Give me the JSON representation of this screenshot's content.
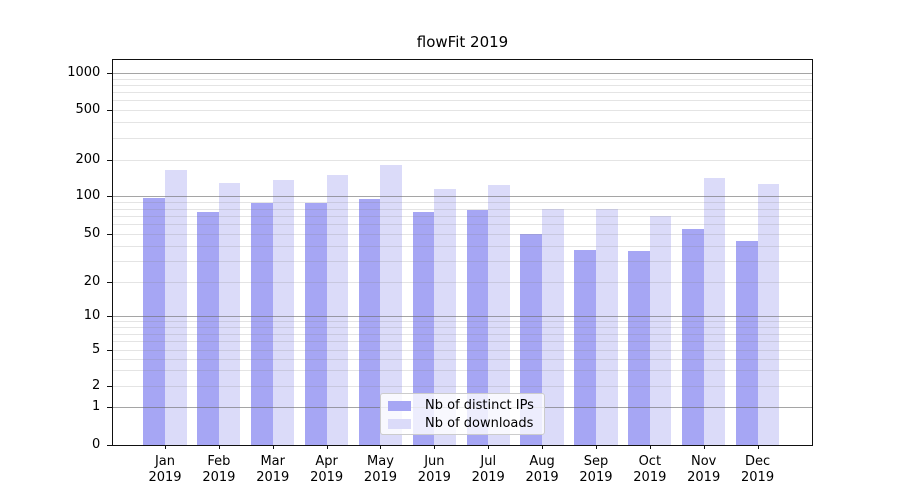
{
  "title": "flowFit 2019",
  "chart_data": {
    "type": "bar",
    "title": "flowFit 2019",
    "y_scale": "symlog",
    "grid": "on",
    "categories": [
      "Jan",
      "Feb",
      "Mar",
      "Apr",
      "May",
      "Jun",
      "Jul",
      "Aug",
      "Sep",
      "Oct",
      "Nov",
      "Dec"
    ],
    "category_year": "2019",
    "series": [
      {
        "name": "Nb of distinct IPs",
        "color": "#a6a6f4",
        "values": [
          97,
          75,
          88,
          89,
          96,
          75,
          78,
          50,
          37,
          36,
          55,
          44
        ]
      },
      {
        "name": "Nb of downloads",
        "color": "#dbdbf9",
        "values": [
          167,
          128,
          137,
          151,
          182,
          114,
          124,
          79,
          79,
          70,
          141,
          127
        ]
      }
    ],
    "y_ticks": [
      0,
      1,
      2,
      5,
      10,
      20,
      50,
      100,
      200,
      500,
      1000
    ],
    "y_minor_gridlines": [
      2,
      3,
      4,
      5,
      6,
      7,
      8,
      9,
      20,
      30,
      40,
      50,
      60,
      70,
      80,
      90,
      200,
      300,
      400,
      500,
      600,
      700,
      800,
      900
    ],
    "y_major_gridlines": [
      1,
      10,
      100,
      1000
    ],
    "legend": {
      "entries": [
        "Nb of distinct IPs",
        "Nb of downloads"
      ],
      "position": "lower center"
    }
  }
}
